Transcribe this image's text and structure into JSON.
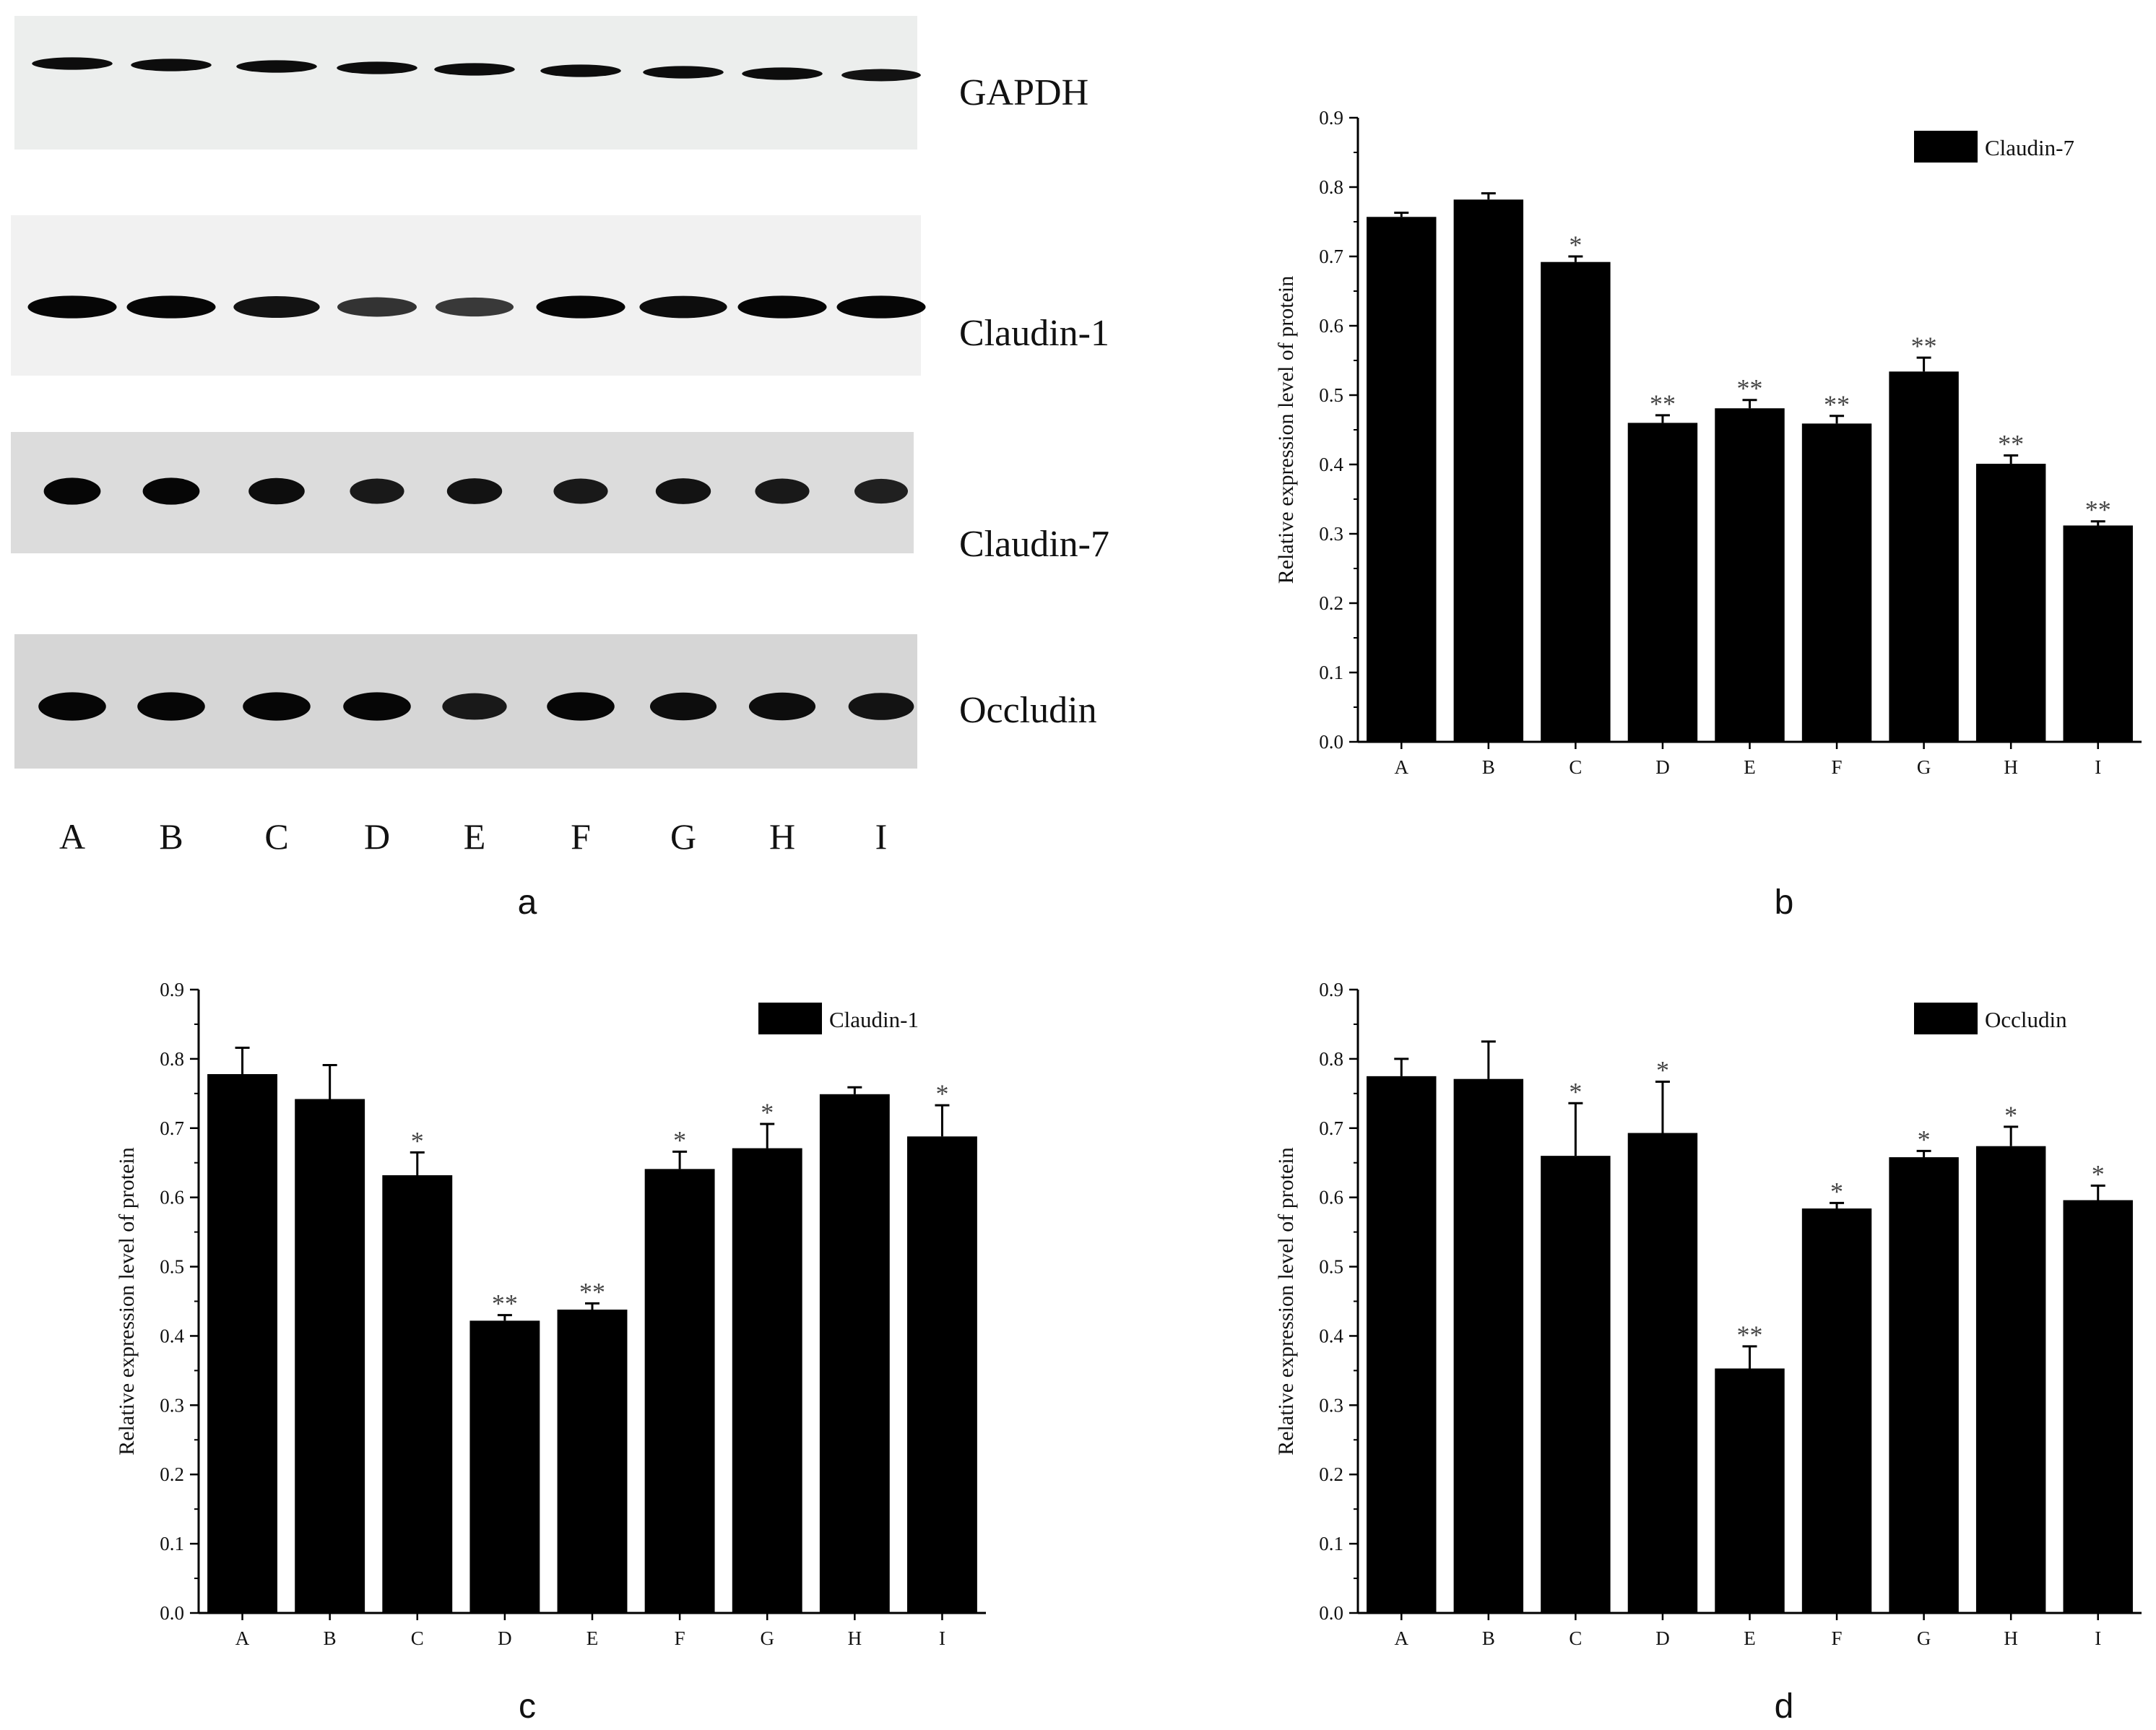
{
  "blot": {
    "proteins": [
      "GAPDH",
      "Claudin-1",
      "Claudin-7",
      "Occludin"
    ],
    "lanes": [
      "A",
      "B",
      "C",
      "D",
      "E",
      "F",
      "G",
      "H",
      "I"
    ],
    "panel_label": "a",
    "band_intensity": {
      "GAPDH": [
        0.9,
        0.9,
        0.9,
        0.9,
        0.9,
        0.9,
        0.9,
        0.9,
        0.85
      ],
      "Claudin-1": [
        0.95,
        0.95,
        0.85,
        0.6,
        0.55,
        0.95,
        0.9,
        0.95,
        0.95
      ],
      "Claudin-7": [
        0.95,
        0.95,
        0.9,
        0.8,
        0.85,
        0.8,
        0.85,
        0.8,
        0.75
      ],
      "Occludin": [
        0.95,
        0.95,
        0.95,
        0.95,
        0.8,
        0.95,
        0.9,
        0.9,
        0.85
      ]
    }
  },
  "chart_data": [
    {
      "type": "bar",
      "panel": "b",
      "legend": "Claudin-7",
      "legend_position": "top-right",
      "ylabel": "Relative expression level of protein",
      "ylim": [
        0,
        0.9
      ],
      "yticks": [
        "0.0",
        "0.1",
        "0.2",
        "0.3",
        "0.4",
        "0.5",
        "0.6",
        "0.7",
        "0.8",
        "0.9"
      ],
      "categories": [
        "A",
        "B",
        "C",
        "D",
        "E",
        "F",
        "G",
        "H",
        "I"
      ],
      "values": [
        0.757,
        0.782,
        0.692,
        0.46,
        0.481,
        0.459,
        0.534,
        0.401,
        0.312
      ],
      "errors": [
        0.006,
        0.009,
        0.008,
        0.011,
        0.012,
        0.011,
        0.02,
        0.012,
        0.006
      ],
      "significance": [
        "",
        "",
        "*",
        "**",
        "**",
        "**",
        "**",
        "**",
        "**"
      ]
    },
    {
      "type": "bar",
      "panel": "c",
      "legend": "Claudin-1",
      "legend_position": "top-right",
      "ylabel": "Relative expression level of protein",
      "ylim": [
        0,
        0.9
      ],
      "yticks": [
        "0.0",
        "0.1",
        "0.2",
        "0.3",
        "0.4",
        "0.5",
        "0.6",
        "0.7",
        "0.8",
        "0.9"
      ],
      "categories": [
        "A",
        "B",
        "C",
        "D",
        "E",
        "F",
        "G",
        "H",
        "I"
      ],
      "values": [
        0.778,
        0.742,
        0.632,
        0.422,
        0.438,
        0.641,
        0.671,
        0.749,
        0.688
      ],
      "errors": [
        0.038,
        0.049,
        0.033,
        0.008,
        0.009,
        0.025,
        0.035,
        0.01,
        0.045
      ],
      "significance": [
        "",
        "",
        "*",
        "**",
        "**",
        "*",
        "*",
        "",
        "*"
      ]
    },
    {
      "type": "bar",
      "panel": "d",
      "legend": "Occludin",
      "legend_position": "top-right",
      "ylabel": "Relative expression level of protein",
      "ylim": [
        0,
        0.9
      ],
      "yticks": [
        "0.0",
        "0.1",
        "0.2",
        "0.3",
        "0.4",
        "0.5",
        "0.6",
        "0.7",
        "0.8",
        "0.9"
      ],
      "categories": [
        "A",
        "B",
        "C",
        "D",
        "E",
        "F",
        "G",
        "H",
        "I"
      ],
      "values": [
        0.775,
        0.771,
        0.66,
        0.693,
        0.353,
        0.584,
        0.658,
        0.674,
        0.596
      ],
      "errors": [
        0.025,
        0.054,
        0.076,
        0.074,
        0.032,
        0.008,
        0.009,
        0.028,
        0.021
      ],
      "significance": [
        "",
        "",
        "*",
        "*",
        "**",
        "*",
        "*",
        "*",
        "*"
      ]
    }
  ]
}
